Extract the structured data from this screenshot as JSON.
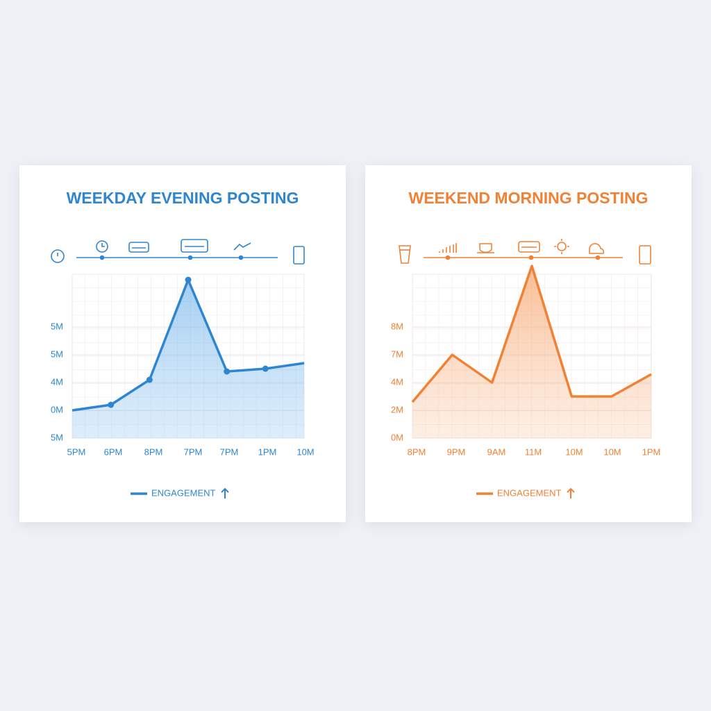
{
  "chart_data": [
    {
      "type": "line",
      "title": "WEEKDAY EVENING POSTING",
      "categories": [
        "5PM",
        "6PM",
        "8PM",
        "7PM",
        "7PM",
        "1PM",
        "10M"
      ],
      "series": [
        {
          "name": "ENGAGEMENT",
          "color": "#2e86d1",
          "values": [
            1.0,
            1.2,
            2.1,
            5.7,
            2.4,
            2.5,
            2.7
          ]
        }
      ],
      "ylim": [
        0,
        5.9
      ],
      "yticks": [
        {
          "value": 0,
          "label": "5M"
        },
        {
          "value": 1,
          "label": "0M"
        },
        {
          "value": 2,
          "label": "4M"
        },
        {
          "value": 3,
          "label": "5M"
        },
        {
          "value": 4,
          "label": "5M"
        }
      ],
      "grid": true
    },
    {
      "type": "line",
      "title": "WEEKEND MORNING POSTING",
      "categories": [
        "8PM",
        "9PM",
        "9AM",
        "11M",
        "10M",
        "10M",
        "1PM"
      ],
      "series": [
        {
          "name": "ENGAGEMENT",
          "color": "#f08135",
          "values": [
            1.3,
            3.0,
            2.0,
            6.2,
            1.5,
            1.5,
            2.3
          ]
        }
      ],
      "ylim": [
        0,
        5.9
      ],
      "yticks": [
        {
          "value": 0,
          "label": "0M"
        },
        {
          "value": 1,
          "label": "2M"
        },
        {
          "value": 2,
          "label": "4M"
        },
        {
          "value": 3,
          "label": "7M"
        },
        {
          "value": 4,
          "label": "8M"
        }
      ],
      "grid": true
    }
  ]
}
